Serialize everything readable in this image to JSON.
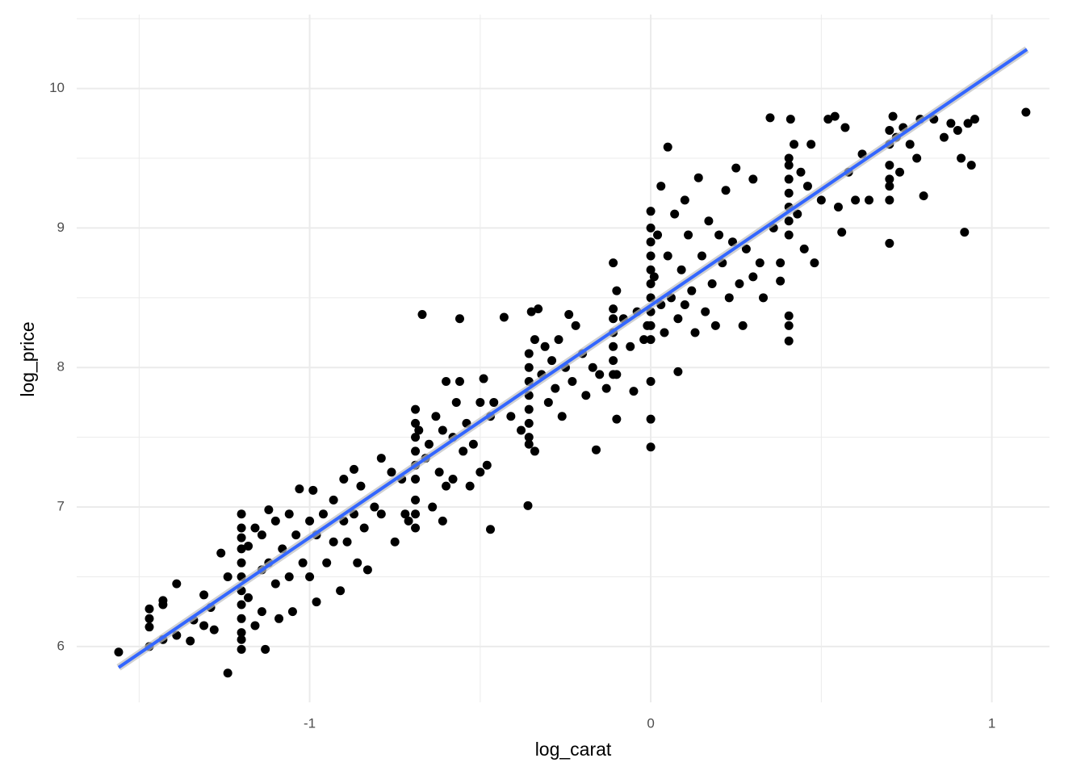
{
  "chart_data": {
    "type": "scatter",
    "x_label": "log_carat",
    "y_label": "log_price",
    "xlim": [
      -1.683,
      1.169
    ],
    "ylim": [
      5.6,
      10.53
    ],
    "xticks": [
      -1,
      0,
      1
    ],
    "yticks": [
      6,
      7,
      8,
      9,
      10
    ],
    "minor_xticks": [
      -1.5,
      -0.5,
      0.5
    ],
    "minor_yticks": [
      6.5,
      7.5,
      8.5,
      9.5,
      10.5
    ],
    "grid": true,
    "color": "#000000",
    "fit": {
      "x": [
        -1.56,
        1.103
      ],
      "values": [
        5.85,
        10.28
      ],
      "color": "#3366ff"
    },
    "x": [
      -1.56,
      -1.47,
      -1.47,
      -1.47,
      -1.47,
      -1.43,
      -1.43,
      -1.43,
      -1.39,
      -1.39,
      -1.35,
      -1.34,
      -1.31,
      -1.31,
      -1.29,
      -1.28,
      -1.26,
      -1.24,
      -1.24,
      -1.2,
      -1.2,
      -1.2,
      -1.2,
      -1.2,
      -1.2,
      -1.2,
      -1.2,
      -1.2,
      -1.2,
      -1.2,
      -1.2,
      -1.18,
      -1.18,
      -1.16,
      -1.16,
      -1.14,
      -1.14,
      -1.14,
      -1.13,
      -1.12,
      -1.12,
      -1.1,
      -1.1,
      -1.09,
      -1.08,
      -1.06,
      -1.06,
      -1.05,
      -1.04,
      -1.03,
      -1.02,
      -1.0,
      -1.0,
      -0.99,
      -0.98,
      -0.98,
      -0.96,
      -0.95,
      -0.93,
      -0.93,
      -0.91,
      -0.9,
      -0.9,
      -0.89,
      -0.87,
      -0.87,
      -0.86,
      -0.85,
      -0.84,
      -0.83,
      -0.81,
      -0.79,
      -0.79,
      -0.76,
      -0.75,
      -0.73,
      -0.72,
      -0.71,
      -0.69,
      -0.69,
      -0.69,
      -0.69,
      -0.69,
      -0.69,
      -0.69,
      -0.69,
      -0.69,
      -0.68,
      -0.67,
      -0.66,
      -0.65,
      -0.64,
      -0.63,
      -0.62,
      -0.61,
      -0.61,
      -0.6,
      -0.6,
      -0.58,
      -0.58,
      -0.57,
      -0.56,
      -0.56,
      -0.55,
      -0.54,
      -0.53,
      -0.52,
      -0.5,
      -0.5,
      -0.49,
      -0.48,
      -0.47,
      -0.46,
      -0.47,
      -0.43,
      -0.41,
      -0.38,
      -0.36,
      -0.357,
      -0.357,
      -0.357,
      -0.357,
      -0.357,
      -0.357,
      -0.357,
      -0.357,
      -0.35,
      -0.34,
      -0.34,
      -0.33,
      -0.32,
      -0.31,
      -0.3,
      -0.29,
      -0.28,
      -0.27,
      -0.26,
      -0.25,
      -0.24,
      -0.23,
      -0.22,
      -0.2,
      -0.19,
      -0.17,
      -0.15,
      -0.16,
      -0.13,
      -0.1,
      -0.11,
      -0.11,
      -0.11,
      -0.11,
      -0.11,
      -0.11,
      -0.11,
      -0.1,
      -0.1,
      -0.08,
      -0.06,
      -0.05,
      -0.04,
      -0.02,
      -0.01,
      0,
      0,
      0,
      0,
      0,
      0,
      0,
      0,
      0,
      0,
      0,
      0,
      0,
      0.01,
      0.02,
      0.03,
      0.03,
      0.04,
      0.05,
      0.05,
      0.06,
      0.07,
      0.08,
      0.08,
      0.09,
      0.1,
      0.1,
      0.11,
      0.12,
      0.13,
      0.14,
      0.15,
      0.16,
      0.17,
      0.18,
      0.19,
      0.2,
      0.21,
      0.22,
      0.23,
      0.24,
      0.25,
      0.26,
      0.27,
      0.28,
      0.3,
      0.3,
      0.32,
      0.33,
      0.35,
      0.36,
      0.38,
      0.38,
      0.405,
      0.405,
      0.405,
      0.405,
      0.405,
      0.405,
      0.405,
      0.405,
      0.405,
      0.405,
      0.41,
      0.42,
      0.43,
      0.44,
      0.45,
      0.46,
      0.47,
      0.48,
      0.5,
      0.52,
      0.54,
      0.55,
      0.56,
      0.57,
      0.58,
      0.6,
      0.62,
      0.64,
      0.7,
      0.7,
      0.7,
      0.7,
      0.7,
      0.7,
      0.7,
      0.71,
      0.72,
      0.73,
      0.74,
      0.76,
      0.78,
      0.79,
      0.8,
      0.83,
      0.86,
      0.88,
      0.9,
      0.91,
      0.92,
      0.93,
      0.94,
      0.95,
      1.1
    ],
    "values": [
      5.96,
      6.27,
      6.2,
      6.14,
      6.0,
      6.33,
      6.3,
      6.05,
      6.45,
      6.08,
      6.04,
      6.19,
      6.37,
      6.15,
      6.28,
      6.12,
      6.67,
      6.5,
      5.81,
      6.95,
      6.85,
      6.78,
      6.7,
      6.6,
      6.5,
      6.4,
      6.3,
      6.2,
      6.1,
      6.05,
      5.98,
      6.72,
      6.35,
      6.85,
      6.15,
      6.8,
      6.55,
      6.25,
      5.98,
      6.98,
      6.6,
      6.9,
      6.45,
      6.2,
      6.7,
      6.95,
      6.5,
      6.25,
      6.8,
      7.13,
      6.6,
      6.9,
      6.5,
      7.12,
      6.8,
      6.32,
      6.95,
      6.6,
      7.05,
      6.75,
      6.4,
      7.2,
      6.9,
      6.75,
      7.27,
      6.95,
      6.6,
      7.15,
      6.85,
      6.55,
      7.0,
      6.95,
      7.35,
      7.25,
      6.75,
      7.2,
      6.95,
      6.9,
      7.7,
      7.6,
      7.5,
      7.4,
      7.3,
      7.2,
      7.05,
      6.95,
      6.85,
      7.55,
      8.38,
      7.35,
      7.45,
      7.0,
      7.65,
      7.25,
      7.55,
      6.9,
      7.9,
      7.15,
      7.5,
      7.2,
      7.75,
      8.35,
      7.9,
      7.4,
      7.6,
      7.15,
      7.45,
      7.25,
      7.75,
      7.92,
      7.3,
      7.65,
      7.75,
      6.84,
      8.36,
      7.65,
      7.55,
      7.01,
      8.1,
      8.0,
      7.9,
      7.8,
      7.7,
      7.6,
      7.5,
      7.45,
      8.4,
      8.2,
      7.4,
      8.42,
      7.95,
      8.15,
      7.75,
      8.05,
      7.85,
      8.2,
      7.65,
      8.0,
      8.38,
      7.9,
      8.3,
      8.1,
      7.8,
      8.0,
      7.95,
      7.41,
      7.85,
      7.95,
      8.75,
      8.42,
      8.35,
      8.25,
      8.15,
      8.05,
      7.95,
      8.55,
      7.63,
      8.35,
      8.15,
      7.83,
      8.4,
      8.2,
      8.3,
      9.12,
      9.0,
      8.9,
      8.8,
      8.7,
      8.6,
      8.5,
      8.4,
      8.3,
      8.2,
      7.63,
      7.43,
      7.9,
      8.65,
      8.95,
      8.45,
      9.3,
      8.25,
      8.8,
      9.58,
      8.5,
      9.1,
      8.35,
      7.97,
      8.7,
      9.2,
      8.45,
      8.95,
      8.55,
      8.25,
      9.36,
      8.8,
      8.4,
      9.05,
      8.6,
      8.3,
      8.95,
      8.75,
      9.27,
      8.5,
      8.9,
      9.43,
      8.6,
      8.3,
      8.85,
      9.35,
      8.65,
      8.75,
      8.5,
      9.79,
      9.0,
      8.75,
      8.62,
      9.5,
      9.45,
      9.35,
      9.25,
      9.15,
      9.05,
      8.95,
      8.37,
      8.3,
      8.19,
      9.78,
      9.6,
      9.1,
      9.4,
      8.85,
      9.3,
      9.6,
      8.75,
      9.2,
      9.78,
      9.8,
      9.15,
      8.97,
      9.72,
      9.4,
      9.2,
      9.53,
      9.2,
      9.7,
      9.6,
      9.45,
      9.35,
      9.3,
      9.2,
      8.89,
      9.8,
      9.65,
      9.4,
      9.72,
      9.6,
      9.5,
      9.78,
      9.23,
      9.78,
      9.65,
      9.75,
      9.7,
      9.5,
      8.97,
      9.75,
      9.45,
      9.78,
      9.83
    ]
  }
}
